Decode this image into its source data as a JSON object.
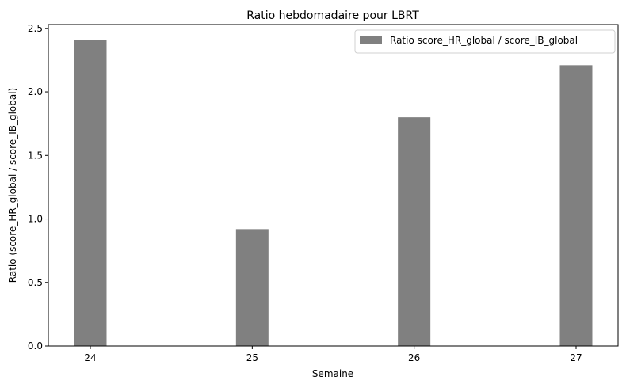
{
  "chart_data": {
    "type": "bar",
    "title": "Ratio hebdomadaire pour LBRT",
    "xlabel": "Semaine",
    "ylabel": "Ratio (score_HR_global / score_IB_global)",
    "categories": [
      "24",
      "25",
      "26",
      "27"
    ],
    "series": [
      {
        "name": "Ratio score_HR_global / score_IB_global",
        "values": [
          2.41,
          0.92,
          1.8,
          2.21
        ]
      }
    ],
    "ylim": [
      0,
      2.53
    ],
    "yticks": [
      0.0,
      0.5,
      1.0,
      1.5,
      2.0,
      2.5
    ],
    "ytick_labels": [
      "0.0",
      "0.5",
      "1.0",
      "1.5",
      "2.0",
      "2.5"
    ],
    "grid": false,
    "legend_position": "top-right",
    "bar_color": "#808080"
  }
}
